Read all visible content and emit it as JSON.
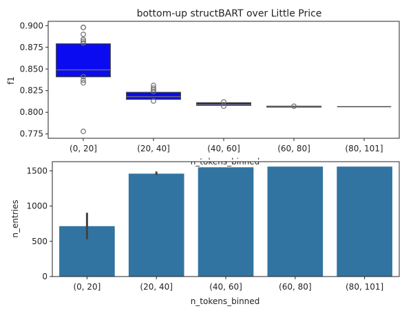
{
  "chart_data": [
    {
      "type": "box",
      "title": "bottom-up structBART over Little Price",
      "xlabel": "n_tokens_binned",
      "ylabel": "f1",
      "categories": [
        "(0, 20]",
        "(20, 40]",
        "(40, 60]",
        "(60, 80]",
        "(80, 101]"
      ],
      "ylim": [
        0.77,
        0.905
      ],
      "yticks": [
        0.775,
        0.8,
        0.825,
        0.85,
        0.875,
        0.9
      ],
      "ytick_labels": [
        "0.775",
        "0.800",
        "0.825",
        "0.850",
        "0.875",
        "0.900"
      ],
      "box_color": "#0b0bf2",
      "boxes": [
        {
          "q1": 0.841,
          "median": 0.849,
          "q3": 0.879,
          "whisker_low": 0.841,
          "whisker_high": 0.879,
          "outliers": [
            0.898,
            0.898,
            0.89,
            0.884,
            0.882,
            0.88,
            0.841,
            0.837,
            0.834,
            0.778
          ]
        },
        {
          "q1": 0.815,
          "median": 0.818,
          "q3": 0.823,
          "whisker_low": 0.815,
          "whisker_high": 0.823,
          "outliers": [
            0.831,
            0.828,
            0.826,
            0.824,
            0.813
          ]
        },
        {
          "q1": 0.808,
          "median": 0.809,
          "q3": 0.811,
          "whisker_low": 0.808,
          "whisker_high": 0.811,
          "outliers": [
            0.812,
            0.807
          ]
        },
        {
          "q1": 0.806,
          "median": 0.807,
          "q3": 0.807,
          "whisker_low": 0.806,
          "whisker_high": 0.807,
          "outliers": [
            0.807
          ]
        },
        {
          "q1": 0.8065,
          "median": 0.8065,
          "q3": 0.8065,
          "whisker_low": 0.8065,
          "whisker_high": 0.8065,
          "outliers": []
        }
      ]
    },
    {
      "type": "bar",
      "title": "",
      "xlabel": "n_tokens_binned",
      "ylabel": "n_entries",
      "categories": [
        "(0, 20]",
        "(20, 40]",
        "(40, 60]",
        "(60, 80]",
        "(80, 101]"
      ],
      "values": [
        715,
        1460,
        1550,
        1560,
        1560
      ],
      "error_low": [
        530,
        1440,
        null,
        null,
        null
      ],
      "error_high": [
        905,
        1490,
        null,
        null,
        null
      ],
      "ylim": [
        0,
        1630
      ],
      "yticks": [
        0,
        500,
        1000,
        1500
      ],
      "bar_color": "#3274a1"
    }
  ]
}
